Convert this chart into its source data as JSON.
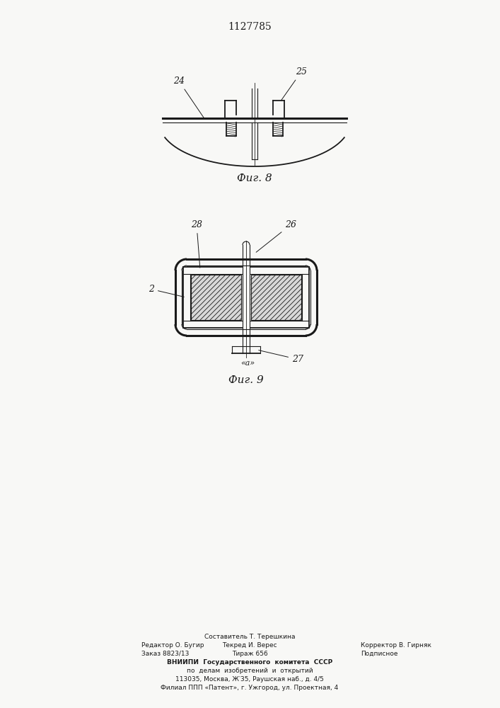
{
  "patent_number": "1127785",
  "fig8_caption": "Фиг. 8",
  "fig9_caption": "Фиг. 9",
  "bg_color": "#f8f8f6",
  "line_color": "#1a1a1a",
  "footer_col1_line1": "Редактор О. Бугир",
  "footer_col1_line2": "Заказ 8823/13",
  "footer_col2_line0": "Составитель Т. Терешкина",
  "footer_col2_line1": "Текред И. Верес",
  "footer_col2_line2": "Тираж 656",
  "footer_col3_line1": "Корректор В. Гирняк",
  "footer_col3_line2": "Подписное",
  "footer_vniiipi": "ВНИИПИ  Государственного  комитета  СССР",
  "footer_po": "по  делам  изобретений  и  открытий",
  "footer_addr1": "113035, Москва, Ж‵35, Раушская наб., д. 4/5",
  "footer_addr2": "Филиал ППП «Патент», г. Ужгород, ул. Проектная, 4"
}
